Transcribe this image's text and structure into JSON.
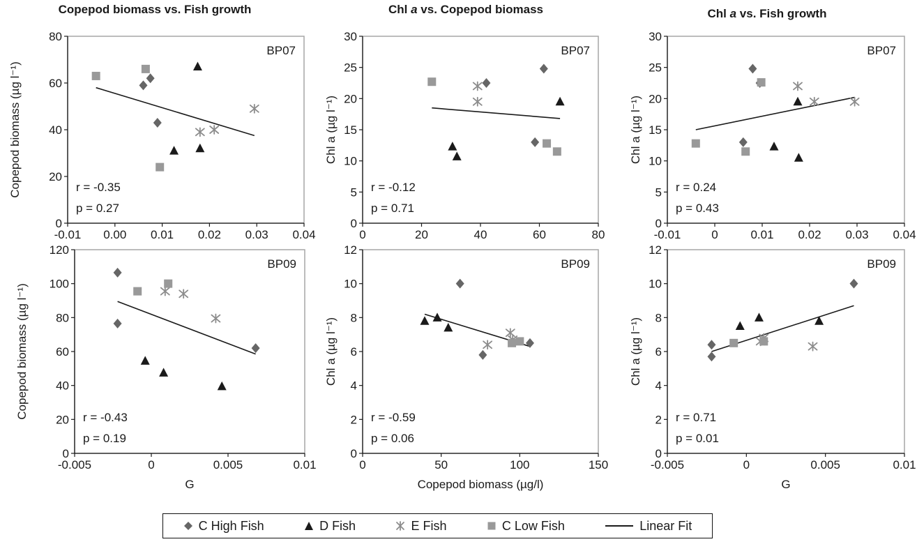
{
  "column_titles": [
    {
      "pre": "Copepod biomass vs. Fish growth",
      "italic": "",
      "post": ""
    },
    {
      "pre": "Chl ",
      "italic": "a",
      "post": " vs. Copepod biomass"
    },
    {
      "pre": "Chl ",
      "italic": "a",
      "post": " vs. Fish growth"
    }
  ],
  "legend": [
    {
      "label": "C High Fish",
      "marker": "diamond"
    },
    {
      "label": "D Fish",
      "marker": "triangle"
    },
    {
      "label": "E Fish",
      "marker": "asterisk"
    },
    {
      "label": "C Low Fish",
      "marker": "square"
    },
    {
      "label": "Linear Fit",
      "marker": "line"
    }
  ],
  "colors": {
    "diamond": "#666666",
    "triangle": "#1a1a1a",
    "asterisk": "#8c8c8c",
    "square": "#999999",
    "line": "#1a1a1a",
    "axis_box": "#a6a6a6"
  },
  "chart_data": [
    {
      "type": "scatter",
      "panel": "BP07",
      "title": "Copepod biomass vs. Fish growth",
      "xlabel": "",
      "ylabel": "Copepod biomass (µg l⁻¹)",
      "xlim": [
        -0.01,
        0.04
      ],
      "ylim": [
        0,
        80
      ],
      "xticks": [
        -0.01,
        0.0,
        0.01,
        0.02,
        0.03,
        0.04
      ],
      "xtick_labels": [
        "-0.01",
        "0.00",
        "0.01",
        "0.02",
        "0.03",
        "0.04"
      ],
      "yticks": [
        0,
        20,
        40,
        60,
        80
      ],
      "ytick_labels": [
        "0",
        "20",
        "40",
        "60",
        "80"
      ],
      "annotation": [
        "r = -0.35",
        "p = 0.27"
      ],
      "series": [
        {
          "name": "C High Fish",
          "marker": "diamond",
          "x": [
            0.006,
            0.0075,
            0.009
          ],
          "y": [
            59,
            62,
            43
          ]
        },
        {
          "name": "D Fish",
          "marker": "triangle",
          "x": [
            0.0125,
            0.0175,
            0.018
          ],
          "y": [
            31,
            67,
            32
          ]
        },
        {
          "name": "E Fish",
          "marker": "asterisk",
          "x": [
            0.018,
            0.021,
            0.0295
          ],
          "y": [
            39,
            40,
            49
          ]
        },
        {
          "name": "C Low Fish",
          "marker": "square",
          "x": [
            -0.004,
            0.0065,
            0.0095
          ],
          "y": [
            63,
            66,
            24
          ]
        }
      ],
      "fit": {
        "x": [
          -0.004,
          0.0295
        ],
        "y": [
          58,
          37.5
        ]
      }
    },
    {
      "type": "scatter",
      "panel": "BP07",
      "title": "Chl a vs. Copepod biomass",
      "xlabel": "",
      "ylabel": "Chl a (µg l⁻¹)",
      "xlim": [
        0,
        80
      ],
      "ylim": [
        0,
        30
      ],
      "xticks": [
        0,
        20,
        40,
        60,
        80
      ],
      "xtick_labels": [
        "0",
        "20",
        "40",
        "60",
        "80"
      ],
      "yticks": [
        0,
        5,
        10,
        15,
        20,
        25,
        30
      ],
      "ytick_labels": [
        "0",
        "5",
        "10",
        "15",
        "20",
        "25",
        "30"
      ],
      "annotation": [
        "r = -0.12",
        "p = 0.71"
      ],
      "series": [
        {
          "name": "C High Fish",
          "marker": "diamond",
          "x": [
            42,
            58.5,
            61.5
          ],
          "y": [
            22.5,
            13,
            24.8
          ]
        },
        {
          "name": "D Fish",
          "marker": "triangle",
          "x": [
            30.5,
            32,
            67
          ],
          "y": [
            12.3,
            10.7,
            19.5
          ]
        },
        {
          "name": "E Fish",
          "marker": "asterisk",
          "x": [
            39,
            39
          ],
          "y": [
            22,
            19.5
          ]
        },
        {
          "name": "C Low Fish",
          "marker": "square",
          "x": [
            23.5,
            62.5,
            66
          ],
          "y": [
            22.7,
            12.8,
            11.5
          ]
        }
      ],
      "fit": {
        "x": [
          23.5,
          67
        ],
        "y": [
          18.5,
          16.8
        ]
      }
    },
    {
      "type": "scatter",
      "panel": "BP07",
      "title": "Chl a vs. Fish growth",
      "xlabel": "",
      "ylabel": "Chl a (µg l⁻¹)",
      "xlim": [
        -0.01,
        0.04
      ],
      "ylim": [
        0,
        30
      ],
      "xticks": [
        -0.01,
        0.0,
        0.01,
        0.02,
        0.03,
        0.04
      ],
      "xtick_labels": [
        "-0.01",
        "0",
        "0.01",
        "0.02",
        "0.03",
        "0.04"
      ],
      "yticks": [
        0,
        5,
        10,
        15,
        20,
        25,
        30
      ],
      "ytick_labels": [
        "0",
        "5",
        "10",
        "15",
        "20",
        "25",
        "30"
      ],
      "annotation": [
        "r = 0.24",
        "p = 0.43"
      ],
      "series": [
        {
          "name": "C High Fish",
          "marker": "diamond",
          "x": [
            0.006,
            0.008,
            0.0095
          ],
          "y": [
            13,
            24.8,
            22.5
          ]
        },
        {
          "name": "D Fish",
          "marker": "triangle",
          "x": [
            0.0125,
            0.0175,
            0.0177
          ],
          "y": [
            12.3,
            19.5,
            10.5
          ]
        },
        {
          "name": "E Fish",
          "marker": "asterisk",
          "x": [
            0.0175,
            0.021,
            0.0295
          ],
          "y": [
            22,
            19.5,
            19.5
          ]
        },
        {
          "name": "C Low Fish",
          "marker": "square",
          "x": [
            -0.004,
            0.0065,
            0.0098
          ],
          "y": [
            12.8,
            11.5,
            22.6
          ]
        }
      ],
      "fit": {
        "x": [
          -0.004,
          0.0295
        ],
        "y": [
          15,
          20.2
        ]
      }
    },
    {
      "type": "scatter",
      "panel": "BP09",
      "title": "Copepod biomass vs. Fish growth",
      "xlabel": "G",
      "ylabel": "Copepod biomass (µg l⁻¹)",
      "xlim": [
        -0.005,
        0.01
      ],
      "ylim": [
        0,
        120
      ],
      "xticks": [
        -0.005,
        0.0,
        0.005,
        0.01
      ],
      "xtick_labels": [
        "-0.005",
        "0",
        "0.005",
        "0.01"
      ],
      "yticks": [
        0,
        20,
        40,
        60,
        80,
        100,
        120
      ],
      "ytick_labels": [
        "0",
        "20",
        "40",
        "60",
        "80",
        "100",
        "120"
      ],
      "annotation": [
        "r = -0.43",
        "p = 0.19"
      ],
      "series": [
        {
          "name": "C High Fish",
          "marker": "diamond",
          "x": [
            -0.0022,
            -0.0022,
            0.0068
          ],
          "y": [
            106.5,
            76.5,
            62
          ]
        },
        {
          "name": "D Fish",
          "marker": "triangle",
          "x": [
            -0.0004,
            0.0008,
            0.0046
          ],
          "y": [
            54.5,
            47.5,
            39.5
          ]
        },
        {
          "name": "E Fish",
          "marker": "asterisk",
          "x": [
            0.0009,
            0.0021,
            0.0042
          ],
          "y": [
            95.5,
            94,
            79.5
          ]
        },
        {
          "name": "C Low Fish",
          "marker": "square",
          "x": [
            -0.0009,
            0.0011
          ],
          "y": [
            95.5,
            100
          ]
        }
      ],
      "fit": {
        "x": [
          -0.0022,
          0.0068
        ],
        "y": [
          89.5,
          58.5
        ]
      }
    },
    {
      "type": "scatter",
      "panel": "BP09",
      "title": "Chl a vs. Copepod biomass",
      "xlabel": "Copepod biomass (µg/l)",
      "ylabel": "Chl a (µg l⁻¹)",
      "xlim": [
        0,
        150
      ],
      "ylim": [
        0,
        12
      ],
      "xticks": [
        0,
        50,
        100,
        150
      ],
      "xtick_labels": [
        "0",
        "50",
        "100",
        "150"
      ],
      "yticks": [
        0,
        2,
        4,
        6,
        8,
        10,
        12
      ],
      "ytick_labels": [
        "0",
        "2",
        "4",
        "6",
        "8",
        "10",
        "12"
      ],
      "annotation": [
        "r = -0.59",
        "p = 0.06"
      ],
      "series": [
        {
          "name": "C High Fish",
          "marker": "diamond",
          "x": [
            62,
            76.5,
            106.5
          ],
          "y": [
            10,
            5.8,
            6.5
          ]
        },
        {
          "name": "D Fish",
          "marker": "triangle",
          "x": [
            39.5,
            47.5,
            54.5
          ],
          "y": [
            7.8,
            8,
            7.4
          ]
        },
        {
          "name": "E Fish",
          "marker": "asterisk",
          "x": [
            79.5,
            94,
            95.5
          ],
          "y": [
            6.4,
            7.1,
            6.7
          ]
        },
        {
          "name": "C Low Fish",
          "marker": "square",
          "x": [
            95,
            100
          ],
          "y": [
            6.5,
            6.6
          ]
        }
      ],
      "fit": {
        "x": [
          39.5,
          106.5
        ],
        "y": [
          8.2,
          6.3
        ]
      }
    },
    {
      "type": "scatter",
      "panel": "BP09",
      "title": "Chl a vs. Fish growth",
      "xlabel": "G",
      "ylabel": "Chl a (µg l⁻¹)",
      "xlim": [
        -0.005,
        0.01
      ],
      "ylim": [
        0,
        12
      ],
      "xticks": [
        -0.005,
        0.0,
        0.005,
        0.01
      ],
      "xtick_labels": [
        "-0.005",
        "0",
        "0.005",
        "0.01"
      ],
      "yticks": [
        0,
        2,
        4,
        6,
        8,
        10,
        12
      ],
      "ytick_labels": [
        "0",
        "2",
        "4",
        "6",
        "8",
        "10",
        "12"
      ],
      "annotation": [
        "r = 0.71",
        "p = 0.01"
      ],
      "series": [
        {
          "name": "C High Fish",
          "marker": "diamond",
          "x": [
            -0.0022,
            -0.0022,
            0.0068
          ],
          "y": [
            6.4,
            5.7,
            10
          ]
        },
        {
          "name": "D Fish",
          "marker": "triangle",
          "x": [
            -0.0004,
            0.0008,
            0.0046
          ],
          "y": [
            7.5,
            8,
            7.8
          ]
        },
        {
          "name": "E Fish",
          "marker": "asterisk",
          "x": [
            0.0009,
            0.0011,
            0.0042
          ],
          "y": [
            6.6,
            6.8,
            6.3
          ]
        },
        {
          "name": "C Low Fish",
          "marker": "square",
          "x": [
            -0.0008,
            0.0011
          ],
          "y": [
            6.5,
            6.6
          ]
        }
      ],
      "fit": {
        "x": [
          -0.0022,
          0.0068
        ],
        "y": [
          6.0,
          8.7
        ]
      }
    }
  ]
}
